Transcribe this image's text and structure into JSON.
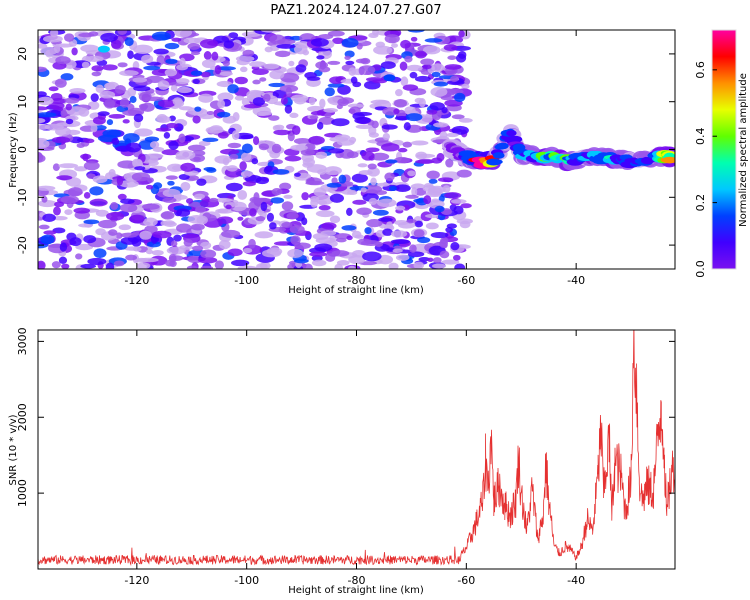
{
  "title": "PAZ1.2024.124.07.27.G07",
  "colors": {
    "snr_line": "#e53030",
    "palette": [
      "#e8dcf8",
      "#c9a8f0",
      "#9a55ea",
      "#7a10f0",
      "#4000ff",
      "#0040ff",
      "#00c8ff",
      "#00ffb0",
      "#60ff00",
      "#e8ff00",
      "#ff9000",
      "#ff0000",
      "#ff00a0"
    ]
  },
  "chart_data": [
    {
      "type": "heatmap",
      "name": "spectrogram",
      "xlabel": "Height of straight line (km)",
      "ylabel": "Frequency (Hz)",
      "xlim": [
        -138,
        -22
      ],
      "ylim": [
        -25,
        25
      ],
      "xticks": [
        -120,
        -100,
        -80,
        -60,
        -40
      ],
      "xtick_labels": [
        "-120",
        "-100",
        "-80",
        "-60",
        "-40"
      ],
      "yticks": [
        -20,
        -10,
        0,
        10,
        20
      ],
      "ytick_labels": [
        "-20",
        "-10",
        "0",
        "10",
        "20"
      ],
      "noise_region": {
        "x": [
          -138,
          -60
        ],
        "y": [
          -25,
          25
        ],
        "typical_amplitude": [
          0.05,
          0.3
        ]
      },
      "signal_track": [
        {
          "x": -63,
          "y": 0.5,
          "amplitude": 0.18
        },
        {
          "x": -60,
          "y": -1.5,
          "amplitude": 0.3
        },
        {
          "x": -58,
          "y": -2.5,
          "amplitude": 0.7
        },
        {
          "x": -55,
          "y": -2.5,
          "amplitude": 0.32
        },
        {
          "x": -52,
          "y": 3.5,
          "amplitude": 0.25
        },
        {
          "x": -50,
          "y": -1.0,
          "amplitude": 0.35
        },
        {
          "x": -47,
          "y": -1.5,
          "amplitude": 0.42
        },
        {
          "x": -44,
          "y": -1.5,
          "amplitude": 0.45
        },
        {
          "x": -41,
          "y": -2.5,
          "amplitude": 0.32
        },
        {
          "x": -37,
          "y": -1.5,
          "amplitude": 0.38
        },
        {
          "x": -33,
          "y": -2.0,
          "amplitude": 0.35
        },
        {
          "x": -30,
          "y": -2.5,
          "amplitude": 0.3
        },
        {
          "x": -25,
          "y": -1.5,
          "amplitude": 0.5
        },
        {
          "x": -23,
          "y": -1.5,
          "amplitude": 0.55
        }
      ],
      "hotspots": [
        {
          "x": -126,
          "y": 21,
          "amplitude": 0.35
        },
        {
          "x": -74,
          "y": 15,
          "amplitude": 0.3
        }
      ]
    },
    {
      "type": "colorbar",
      "label": "Normalized spectral amplitude",
      "range": [
        0.0,
        0.72
      ],
      "ticks": [
        0.0,
        0.2,
        0.4,
        0.6
      ],
      "tick_labels": [
        "0.0",
        "0.2",
        "0.4",
        "0.6"
      ]
    },
    {
      "type": "line",
      "name": "snr",
      "xlabel": "Height of straight line (km)",
      "ylabel": "SNR (10 * v/v)",
      "xlim": [
        -138,
        -22
      ],
      "ylim": [
        0,
        3150
      ],
      "xticks": [
        -120,
        -100,
        -80,
        -60,
        -40
      ],
      "xtick_labels": [
        "-120",
        "-100",
        "-80",
        "-60",
        "-40"
      ],
      "yticks": [
        1000,
        2000,
        3000
      ],
      "ytick_labels": [
        "1000",
        "2000",
        "3000"
      ],
      "baseline": {
        "x_range": [
          -138,
          -61
        ],
        "mean": 120,
        "spread": 60
      },
      "series": [
        {
          "x": [
            -61,
            -60,
            -59,
            -58,
            -57,
            -56.5,
            -56,
            -55.5,
            -55,
            -54,
            -53,
            -52,
            -51,
            -50.5,
            -50,
            -49,
            -48,
            -47,
            -46,
            -45.5,
            -45,
            -44,
            -43,
            -42,
            -41,
            -40,
            -39,
            -38,
            -37,
            -36,
            -35.5,
            -35,
            -34,
            -33.5,
            -33,
            -32,
            -31,
            -30,
            -29.5,
            -29,
            -28.5,
            -28,
            -27,
            -26,
            -25,
            -24.5,
            -24,
            -23.5,
            -23,
            -22
          ],
          "y": [
            180,
            280,
            450,
            650,
            900,
            1450,
            1100,
            1750,
            900,
            1100,
            850,
            700,
            900,
            1450,
            1000,
            500,
            1050,
            400,
            700,
            1400,
            900,
            300,
            200,
            300,
            250,
            150,
            300,
            650,
            500,
            1250,
            1850,
            1000,
            1700,
            700,
            1400,
            1300,
            750,
            1200,
            3150,
            2400,
            1200,
            900,
            1100,
            1000,
            1800,
            2200,
            1600,
            700,
            1100,
            1450
          ]
        }
      ]
    }
  ]
}
